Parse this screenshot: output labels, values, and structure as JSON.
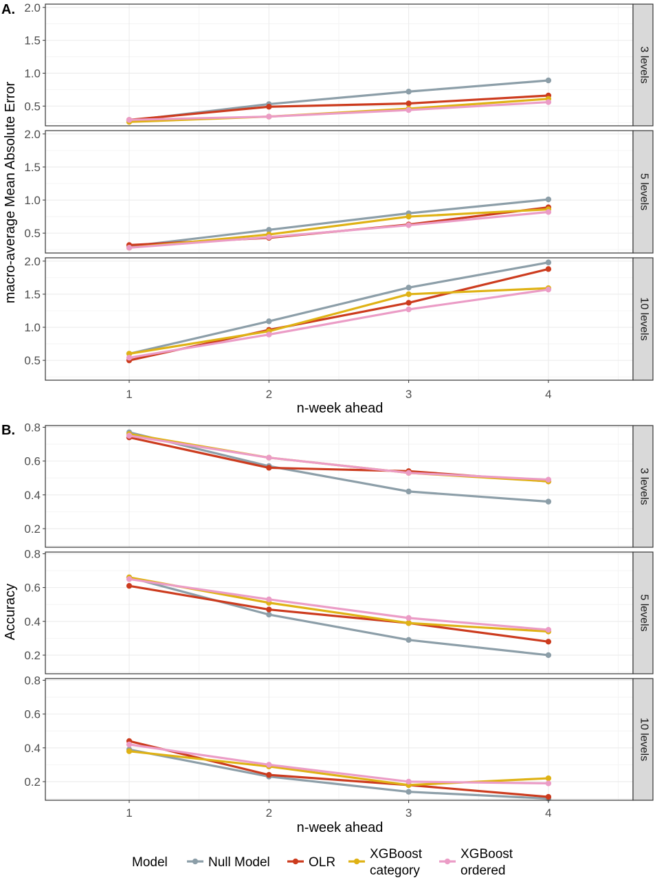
{
  "figure": {
    "panel_a_label": "A.",
    "panel_b_label": "B."
  },
  "colors": {
    "Null Model": "#8c9ea8",
    "OLR": "#cc3b1e",
    "XGBoost category": "#dfb215",
    "XGBoost ordered": "#eb9cc6"
  },
  "legend": {
    "title": "Model",
    "items": [
      "Null Model",
      "OLR",
      "XGBoost category",
      "XGBoost ordered"
    ],
    "labels": [
      [
        "Null Model"
      ],
      [
        "OLR"
      ],
      [
        "XGBoost",
        "category"
      ],
      [
        "XGBoost",
        "ordered"
      ]
    ]
  },
  "chart_data": [
    {
      "type": "line",
      "panel": "A.",
      "xlabel": "n-week ahead",
      "ylabel": "macro-average Mean Absolute Error",
      "x": [
        1,
        2,
        3,
        4
      ],
      "xticks": [
        "1",
        "2",
        "3",
        "4"
      ],
      "ylim": [
        0.2,
        2.05
      ],
      "yticks": [
        0.5,
        1.0,
        1.5,
        2.0
      ],
      "ytick_labels": [
        "0.5",
        "1.0",
        "1.5",
        "2.0"
      ],
      "grid": true,
      "legend_position": "bottom",
      "facets": [
        {
          "label": "3 levels",
          "series": [
            {
              "name": "Null Model",
              "values": [
                0.28,
                0.53,
                0.72,
                0.89
              ]
            },
            {
              "name": "OLR",
              "values": [
                0.29,
                0.49,
                0.54,
                0.66
              ]
            },
            {
              "name": "XGBoost category",
              "values": [
                0.26,
                0.34,
                0.46,
                0.61
              ]
            },
            {
              "name": "XGBoost ordered",
              "values": [
                0.29,
                0.34,
                0.44,
                0.56
              ]
            }
          ]
        },
        {
          "label": "5 levels",
          "series": [
            {
              "name": "Null Model",
              "values": [
                0.3,
                0.55,
                0.8,
                1.01
              ]
            },
            {
              "name": "OLR",
              "values": [
                0.32,
                0.43,
                0.63,
                0.89
              ]
            },
            {
              "name": "XGBoost category",
              "values": [
                0.28,
                0.48,
                0.75,
                0.86
              ]
            },
            {
              "name": "XGBoost ordered",
              "values": [
                0.28,
                0.44,
                0.62,
                0.82
              ]
            }
          ]
        },
        {
          "label": "10 levels",
          "series": [
            {
              "name": "Null Model",
              "values": [
                0.6,
                1.09,
                1.6,
                1.98
              ]
            },
            {
              "name": "OLR",
              "values": [
                0.5,
                0.96,
                1.37,
                1.88
              ]
            },
            {
              "name": "XGBoost category",
              "values": [
                0.6,
                0.94,
                1.5,
                1.59
              ]
            },
            {
              "name": "XGBoost ordered",
              "values": [
                0.54,
                0.89,
                1.27,
                1.57
              ]
            }
          ]
        }
      ]
    },
    {
      "type": "line",
      "panel": "B.",
      "xlabel": "n-week ahead",
      "ylabel": "Accuracy",
      "x": [
        1,
        2,
        3,
        4
      ],
      "xticks": [
        "1",
        "2",
        "3",
        "4"
      ],
      "ylim": [
        0.09,
        0.81
      ],
      "yticks": [
        0.2,
        0.4,
        0.6,
        0.8
      ],
      "ytick_labels": [
        "0.2",
        "0.4",
        "0.6",
        "0.8"
      ],
      "grid": true,
      "legend_position": "bottom",
      "facets": [
        {
          "label": "3 levels",
          "series": [
            {
              "name": "Null Model",
              "values": [
                0.77,
                0.57,
                0.42,
                0.36
              ]
            },
            {
              "name": "OLR",
              "values": [
                0.74,
                0.56,
                0.54,
                0.48
              ]
            },
            {
              "name": "XGBoost category",
              "values": [
                0.76,
                0.62,
                0.53,
                0.48
              ]
            },
            {
              "name": "XGBoost ordered",
              "values": [
                0.75,
                0.62,
                0.53,
                0.49
              ]
            }
          ]
        },
        {
          "label": "5 levels",
          "series": [
            {
              "name": "Null Model",
              "values": [
                0.66,
                0.44,
                0.29,
                0.2
              ]
            },
            {
              "name": "OLR",
              "values": [
                0.61,
                0.47,
                0.39,
                0.28
              ]
            },
            {
              "name": "XGBoost category",
              "values": [
                0.66,
                0.51,
                0.39,
                0.34
              ]
            },
            {
              "name": "XGBoost ordered",
              "values": [
                0.65,
                0.53,
                0.42,
                0.35
              ]
            }
          ]
        },
        {
          "label": "10 levels",
          "series": [
            {
              "name": "Null Model",
              "values": [
                0.39,
                0.23,
                0.14,
                0.1
              ]
            },
            {
              "name": "OLR",
              "values": [
                0.44,
                0.24,
                0.18,
                0.11
              ]
            },
            {
              "name": "XGBoost category",
              "values": [
                0.38,
                0.29,
                0.18,
                0.22
              ]
            },
            {
              "name": "XGBoost ordered",
              "values": [
                0.42,
                0.3,
                0.2,
                0.19
              ]
            }
          ]
        }
      ]
    }
  ]
}
